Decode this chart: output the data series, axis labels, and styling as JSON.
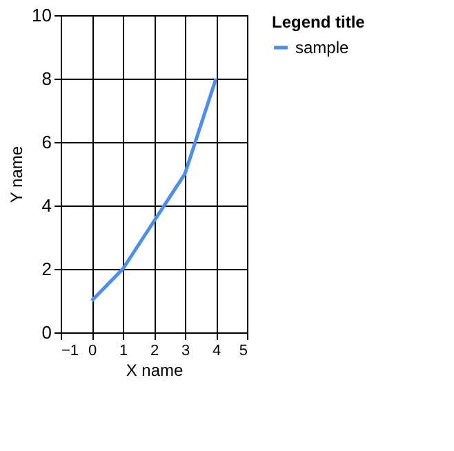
{
  "chart_data": {
    "type": "line",
    "xlabel": "X name",
    "ylabel": "Y name",
    "legend_title": "Legend title",
    "x": [
      0,
      1,
      2,
      3,
      4
    ],
    "series": [
      {
        "name": "sample",
        "color": "#4a8ef0",
        "values": [
          1,
          2,
          3.5,
          5,
          8
        ]
      }
    ],
    "xlim": [
      -1,
      5
    ],
    "xticks": [
      -1,
      0,
      1,
      2,
      3,
      4,
      5
    ],
    "ylim": [
      0,
      10
    ],
    "yticks": [
      0,
      2,
      4,
      6,
      8,
      10
    ],
    "grid": true,
    "legend": "top right",
    "marker": "none",
    "line_style": "solid"
  }
}
